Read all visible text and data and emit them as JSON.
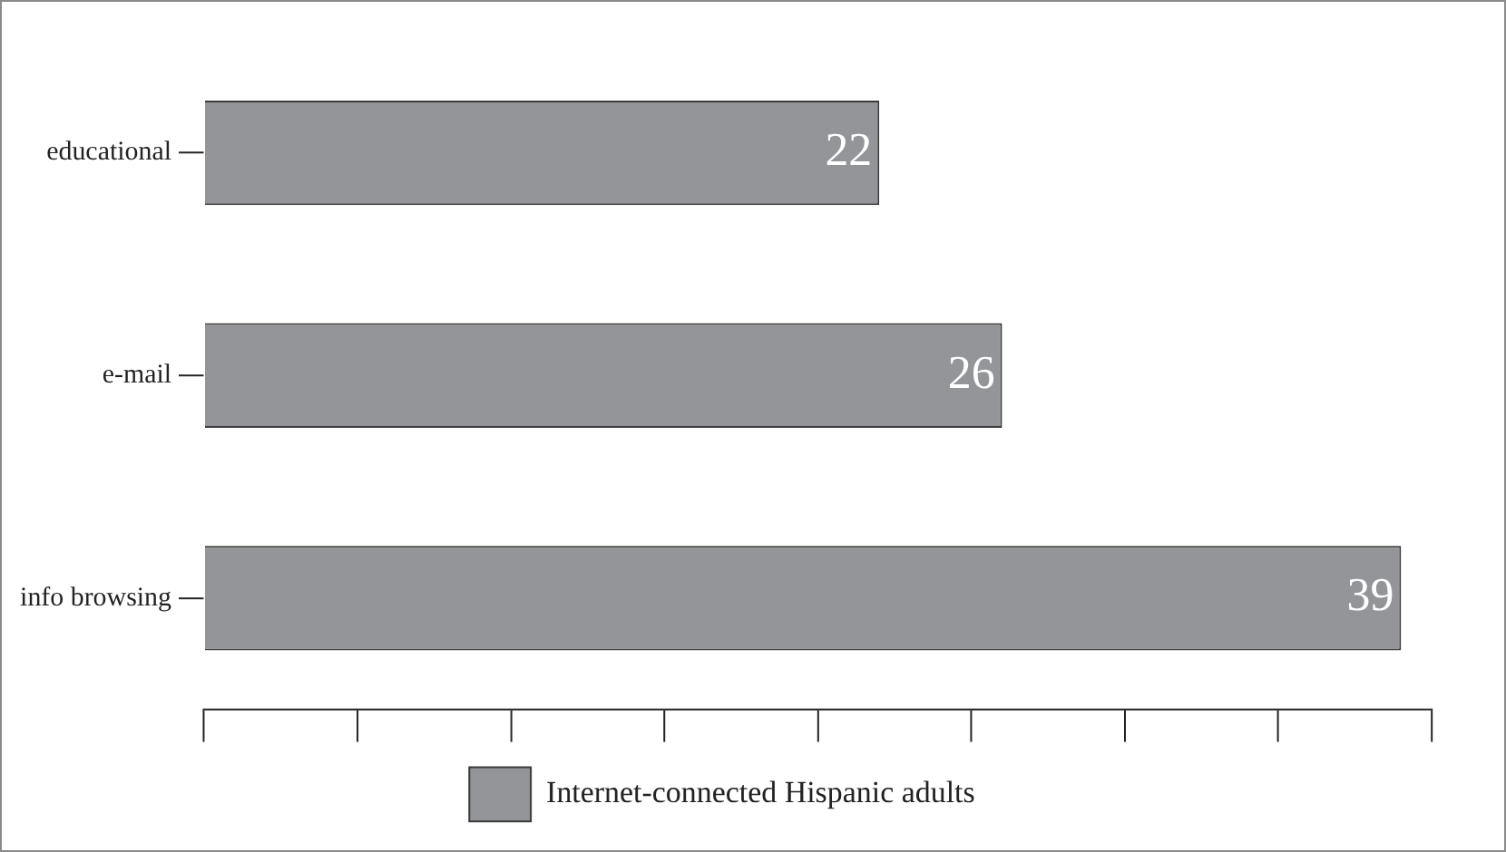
{
  "chart_data": {
    "type": "bar",
    "orientation": "horizontal",
    "categories": [
      "educational",
      "e-mail",
      "info browsing"
    ],
    "series": [
      {
        "name": "Internet-connected Hispanic adults",
        "color": "#939598",
        "values": [
          22,
          26,
          39
        ]
      }
    ],
    "xlim": [
      0,
      40
    ],
    "data_labels": true,
    "tick_labels": "y",
    "legend": "bottom",
    "grid": false
  }
}
